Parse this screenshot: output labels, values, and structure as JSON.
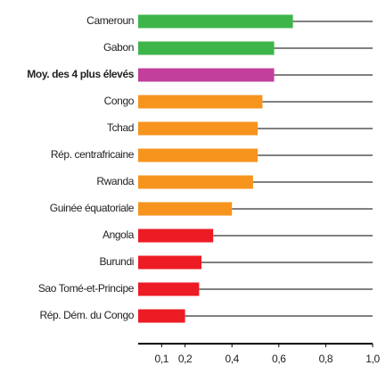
{
  "chart_data": {
    "type": "barh",
    "categories": [
      "Cameroun",
      "Gabon",
      "Moy. des 4 plus élevés",
      "Congo",
      "Tchad",
      "Rép. centrafricaine",
      "Rwanda",
      "Guinée équatoriale",
      "Angola",
      "Burundi",
      "Sao Tomé-et-Principe",
      "Rép. Dém. du Congo"
    ],
    "values": [
      0.66,
      0.58,
      0.58,
      0.53,
      0.51,
      0.51,
      0.49,
      0.4,
      0.32,
      0.27,
      0.26,
      0.2
    ],
    "colors": [
      "#3db54a",
      "#3db54a",
      "#c23f9c",
      "#f7941d",
      "#f7941d",
      "#f7941d",
      "#f7941d",
      "#f7941d",
      "#ed1c24",
      "#ed1c24",
      "#ed1c24",
      "#ed1c24"
    ],
    "bold_category": 2,
    "xlim": [
      0,
      1.0
    ],
    "xticks": [
      {
        "value": 0.1,
        "label": "0,1"
      },
      {
        "value": 0.2,
        "label": "0,2"
      },
      {
        "value": 0.4,
        "label": "0,4"
      },
      {
        "value": 0.6,
        "label": "0,6"
      },
      {
        "value": 0.8,
        "label": "0,8"
      },
      {
        "value": 1.0,
        "label": "1,0"
      }
    ]
  }
}
